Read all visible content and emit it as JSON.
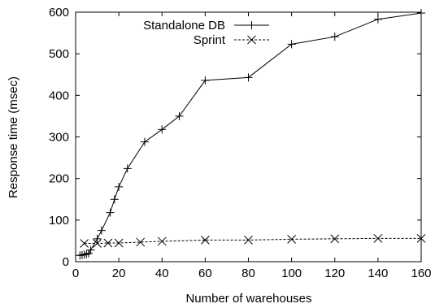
{
  "chart_data": {
    "type": "line",
    "title": "",
    "xlabel": "Number of warehouses",
    "ylabel": "Response time (msec)",
    "xlim": [
      0,
      160
    ],
    "ylim": [
      0,
      600
    ],
    "xticks": [
      0,
      20,
      40,
      60,
      80,
      100,
      120,
      140,
      160
    ],
    "yticks": [
      0,
      100,
      200,
      300,
      400,
      500,
      600
    ],
    "grid": false,
    "legend_position": "top-left",
    "series": [
      {
        "name": "Standalone DB",
        "marker": "plus",
        "line_style": "solid",
        "color": "#000000",
        "points": [
          [
            2,
            15
          ],
          [
            3,
            16
          ],
          [
            4,
            17
          ],
          [
            5,
            18
          ],
          [
            6,
            20
          ],
          [
            7,
            28
          ],
          [
            10,
            55
          ],
          [
            12,
            75
          ],
          [
            16,
            118
          ],
          [
            18,
            150
          ],
          [
            20,
            180
          ],
          [
            24,
            224
          ],
          [
            32,
            288
          ],
          [
            40,
            318
          ],
          [
            48,
            350
          ],
          [
            60,
            436
          ],
          [
            80,
            443
          ],
          [
            100,
            523
          ],
          [
            120,
            541
          ],
          [
            140,
            583
          ],
          [
            160,
            598
          ]
        ]
      },
      {
        "name": "Sprint",
        "marker": "cross",
        "line_style": "dashed",
        "color": "#000000",
        "points": [
          [
            4,
            44
          ],
          [
            10,
            44
          ],
          [
            15,
            45
          ],
          [
            20,
            45
          ],
          [
            30,
            47
          ],
          [
            40,
            49
          ],
          [
            60,
            52
          ],
          [
            80,
            52
          ],
          [
            100,
            54
          ],
          [
            120,
            55
          ],
          [
            140,
            56
          ],
          [
            160,
            56
          ]
        ]
      }
    ]
  }
}
